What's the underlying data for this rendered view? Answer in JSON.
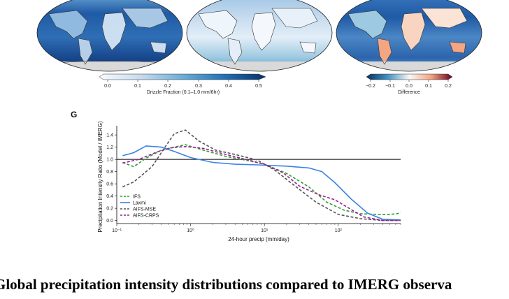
{
  "panel_letter": "G",
  "caption": "Global precipitation intensity distributions compared to IMERG observa",
  "colorbars": {
    "drizzle": {
      "label": "Drizzle Fraction (0.1–1.0 mm/6hr)",
      "ticks": [
        "0.0",
        "0.1",
        "0.2",
        "0.3",
        "0.4",
        "0.5"
      ]
    },
    "difference": {
      "label": "Difference",
      "ticks": [
        "−0.2",
        "−0.1",
        "0.0",
        "0.1",
        "0.2"
      ]
    }
  },
  "colors": {
    "map_ocean_deep": "#1f5aa6",
    "map_light": "#dbe9f6",
    "diverging_neg": "#2166ac",
    "diverging_pos": "#b2182b",
    "land_outline": "#333333",
    "ifs": "#2ca02c",
    "laxmi": "#3b82e6",
    "aifs_mse": "#555555",
    "aifs_crps": "#9b1c9b"
  },
  "chart_data": {
    "type": "line",
    "title": "",
    "xlabel": "24-hour precip (mm/day)",
    "ylabel": "Precipitation Intensity Ratio (Model / IMERG)",
    "xscale": "log",
    "xlim": [
      0.1,
      700
    ],
    "ylim": [
      -0.05,
      1.55
    ],
    "x_tick_labels": [
      "10⁻¹",
      "10⁰",
      "10¹",
      "10²"
    ],
    "x_ticks": [
      0.1,
      1,
      10,
      100
    ],
    "y_ticks": [
      0.0,
      0.2,
      0.4,
      0.6,
      0.8,
      1.0,
      1.2,
      1.4
    ],
    "y_tick_labels": [
      "0.0",
      "0.2",
      "0.4",
      "0.6",
      "0.8",
      "1.0",
      "1.2",
      "1.4"
    ],
    "reference_line": 1.0,
    "legend_position": "lower-left",
    "series": [
      {
        "name": "IFS",
        "style": "dashed",
        "color": "#2ca02c",
        "points": [
          [
            0.12,
            0.95
          ],
          [
            0.17,
            0.88
          ],
          [
            0.25,
            1.02
          ],
          [
            0.4,
            1.15
          ],
          [
            0.6,
            1.2
          ],
          [
            0.85,
            1.24
          ],
          [
            1.5,
            1.15
          ],
          [
            3,
            1.05
          ],
          [
            6,
            0.98
          ],
          [
            10,
            0.92
          ],
          [
            20,
            0.77
          ],
          [
            40,
            0.55
          ],
          [
            70,
            0.3
          ],
          [
            120,
            0.17
          ],
          [
            200,
            0.11
          ],
          [
            350,
            0.1
          ],
          [
            500,
            0.1
          ],
          [
            620,
            0.11
          ],
          [
            700,
            0.13
          ]
        ]
      },
      {
        "name": "Laxmi",
        "style": "solid",
        "color": "#3b82e6",
        "points": [
          [
            0.12,
            1.06
          ],
          [
            0.17,
            1.11
          ],
          [
            0.25,
            1.22
          ],
          [
            0.4,
            1.2
          ],
          [
            0.6,
            1.13
          ],
          [
            1,
            1.03
          ],
          [
            2,
            0.95
          ],
          [
            4,
            0.92
          ],
          [
            8,
            0.91
          ],
          [
            12,
            0.9
          ],
          [
            20,
            0.89
          ],
          [
            40,
            0.86
          ],
          [
            60,
            0.8
          ],
          [
            90,
            0.62
          ],
          [
            150,
            0.35
          ],
          [
            250,
            0.12
          ],
          [
            400,
            0.02
          ],
          [
            700,
            0.01
          ]
        ]
      },
      {
        "name": "AIFS-MSE",
        "style": "dashed",
        "color": "#555555",
        "points": [
          [
            0.12,
            0.55
          ],
          [
            0.17,
            0.63
          ],
          [
            0.3,
            0.88
          ],
          [
            0.45,
            1.2
          ],
          [
            0.6,
            1.42
          ],
          [
            0.85,
            1.48
          ],
          [
            1.3,
            1.3
          ],
          [
            2.2,
            1.15
          ],
          [
            4,
            1.08
          ],
          [
            8,
            0.99
          ],
          [
            14,
            0.82
          ],
          [
            25,
            0.58
          ],
          [
            50,
            0.3
          ],
          [
            100,
            0.1
          ],
          [
            200,
            0.03
          ],
          [
            400,
            0.0
          ],
          [
            700,
            0.0
          ]
        ]
      },
      {
        "name": "AIFS-CRPS",
        "style": "dashed",
        "color": "#9b1c9b",
        "points": [
          [
            0.12,
            0.94
          ],
          [
            0.2,
            1.0
          ],
          [
            0.35,
            1.12
          ],
          [
            0.55,
            1.19
          ],
          [
            0.85,
            1.21
          ],
          [
            1.5,
            1.18
          ],
          [
            3,
            1.08
          ],
          [
            6,
            0.99
          ],
          [
            10,
            0.92
          ],
          [
            18,
            0.78
          ],
          [
            30,
            0.56
          ],
          [
            55,
            0.42
          ],
          [
            90,
            0.34
          ],
          [
            140,
            0.2
          ],
          [
            220,
            0.06
          ],
          [
            400,
            0.0
          ],
          [
            700,
            0.0
          ]
        ]
      }
    ]
  }
}
